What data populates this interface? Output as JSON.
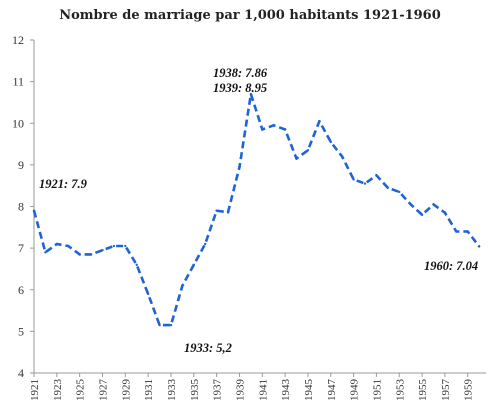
{
  "chart_data": {
    "type": "line",
    "title": "Nombre de marriage par 1,000 habitants 1921-1960",
    "xlabel": "",
    "ylabel": "",
    "ylim": [
      4,
      12
    ],
    "yticks": [
      "4",
      "5",
      "6",
      "7",
      "8",
      "9",
      "10",
      "11",
      "12"
    ],
    "xtick_labels": [
      "1921",
      "1923",
      "1925",
      "1927",
      "1929",
      "1931",
      "1933",
      "1935",
      "1937",
      "1939",
      "1941",
      "1943",
      "1945",
      "1947",
      "1949",
      "1951",
      "1953",
      "1955",
      "1957",
      "1959"
    ],
    "line_style": "dashed",
    "line_color": "#1f63d6",
    "grid": false,
    "series": [
      {
        "x": [
          1921,
          1922,
          1923,
          1924,
          1925,
          1926,
          1927,
          1928,
          1929,
          1930,
          1931,
          1932,
          1933,
          1934,
          1935,
          1936,
          1937,
          1938,
          1939,
          1940,
          1941,
          1942,
          1943,
          1944,
          1945,
          1946,
          1947,
          1948,
          1949,
          1950,
          1951,
          1952,
          1953,
          1954,
          1955,
          1956,
          1957,
          1958,
          1959,
          1960
        ],
        "values": [
          7.9,
          6.9,
          7.1,
          7.05,
          6.85,
          6.85,
          6.95,
          7.05,
          7.05,
          6.6,
          5.9,
          5.15,
          5.15,
          6.1,
          6.6,
          7.1,
          7.9,
          7.86,
          8.95,
          10.7,
          9.85,
          9.95,
          9.85,
          9.15,
          9.35,
          10.05,
          9.55,
          9.2,
          8.65,
          8.55,
          8.75,
          8.45,
          8.35,
          8.05,
          7.8,
          8.05,
          7.85,
          7.4,
          7.4,
          7.04
        ]
      }
    ],
    "annotations": [
      {
        "text": "1921: 7.9"
      },
      {
        "text": "1933: 5,2"
      },
      {
        "text": "1938: 7.86"
      },
      {
        "text": "1939: 8.95"
      },
      {
        "text": "1960: 7.04"
      }
    ]
  }
}
